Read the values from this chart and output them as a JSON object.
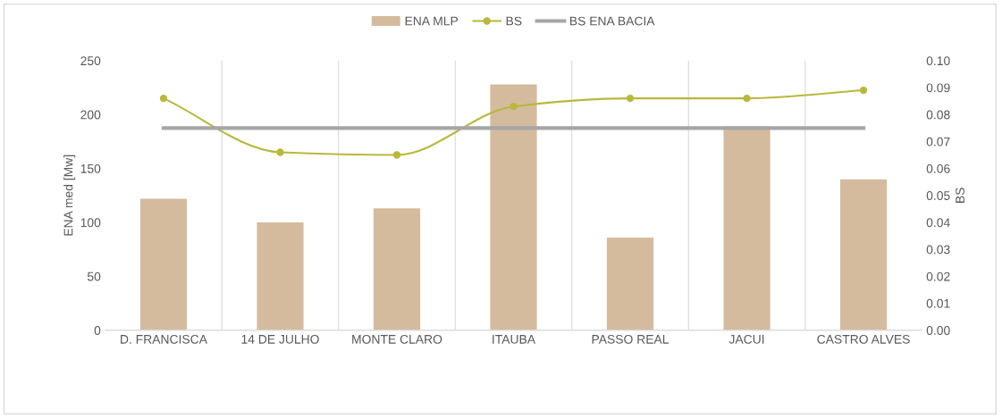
{
  "chart_data": {
    "type": "bar",
    "ylabel": "ENA med [Mw]",
    "y2label": "BS",
    "categories": [
      "D. FRANCISCA",
      "14 DE JULHO",
      "MONTE CLARO",
      "ITAUBA",
      "PASSO REAL",
      "JACUI",
      "CASTRO ALVES"
    ],
    "series": [
      {
        "name": "ENA MLP",
        "color": "#d5bb9e",
        "values": [
          122,
          100,
          113,
          228,
          86,
          189,
          140
        ]
      },
      {
        "name": "BS",
        "type": "line",
        "axis": "y2",
        "color": "#b8b83c",
        "marker": "circle",
        "values": [
          0.086,
          0.066,
          0.065,
          0.083,
          0.086,
          0.086,
          0.089
        ]
      },
      {
        "name": "BS ENA BACIA",
        "type": "line",
        "axis": "y2",
        "color": "#a6a6a6",
        "marker": "none",
        "values": [
          0.075,
          0.075,
          0.075,
          0.075,
          0.075,
          0.075,
          0.075
        ]
      }
    ],
    "ylim": [
      0,
      250
    ],
    "yticks": [
      0,
      50,
      100,
      150,
      200,
      250
    ],
    "y2lim": [
      0,
      0.1
    ],
    "y2ticks": [
      {
        "value": 0,
        "label": "0.00"
      },
      {
        "value": 0.01,
        "label": "0.01"
      },
      {
        "value": 0.02,
        "label": "0.02"
      },
      {
        "value": 0.03,
        "label": "0.03"
      },
      {
        "value": 0.04,
        "label": "0.04"
      },
      {
        "value": 0.05,
        "label": "0.05"
      },
      {
        "value": 0.06,
        "label": "0.06"
      },
      {
        "value": 0.07,
        "label": "0.07"
      },
      {
        "value": 0.08,
        "label": "0.08"
      },
      {
        "value": 0.09,
        "label": "0.09"
      },
      {
        "value": 0.1,
        "label": "0.10"
      }
    ],
    "grid": "x",
    "legend": "top"
  }
}
